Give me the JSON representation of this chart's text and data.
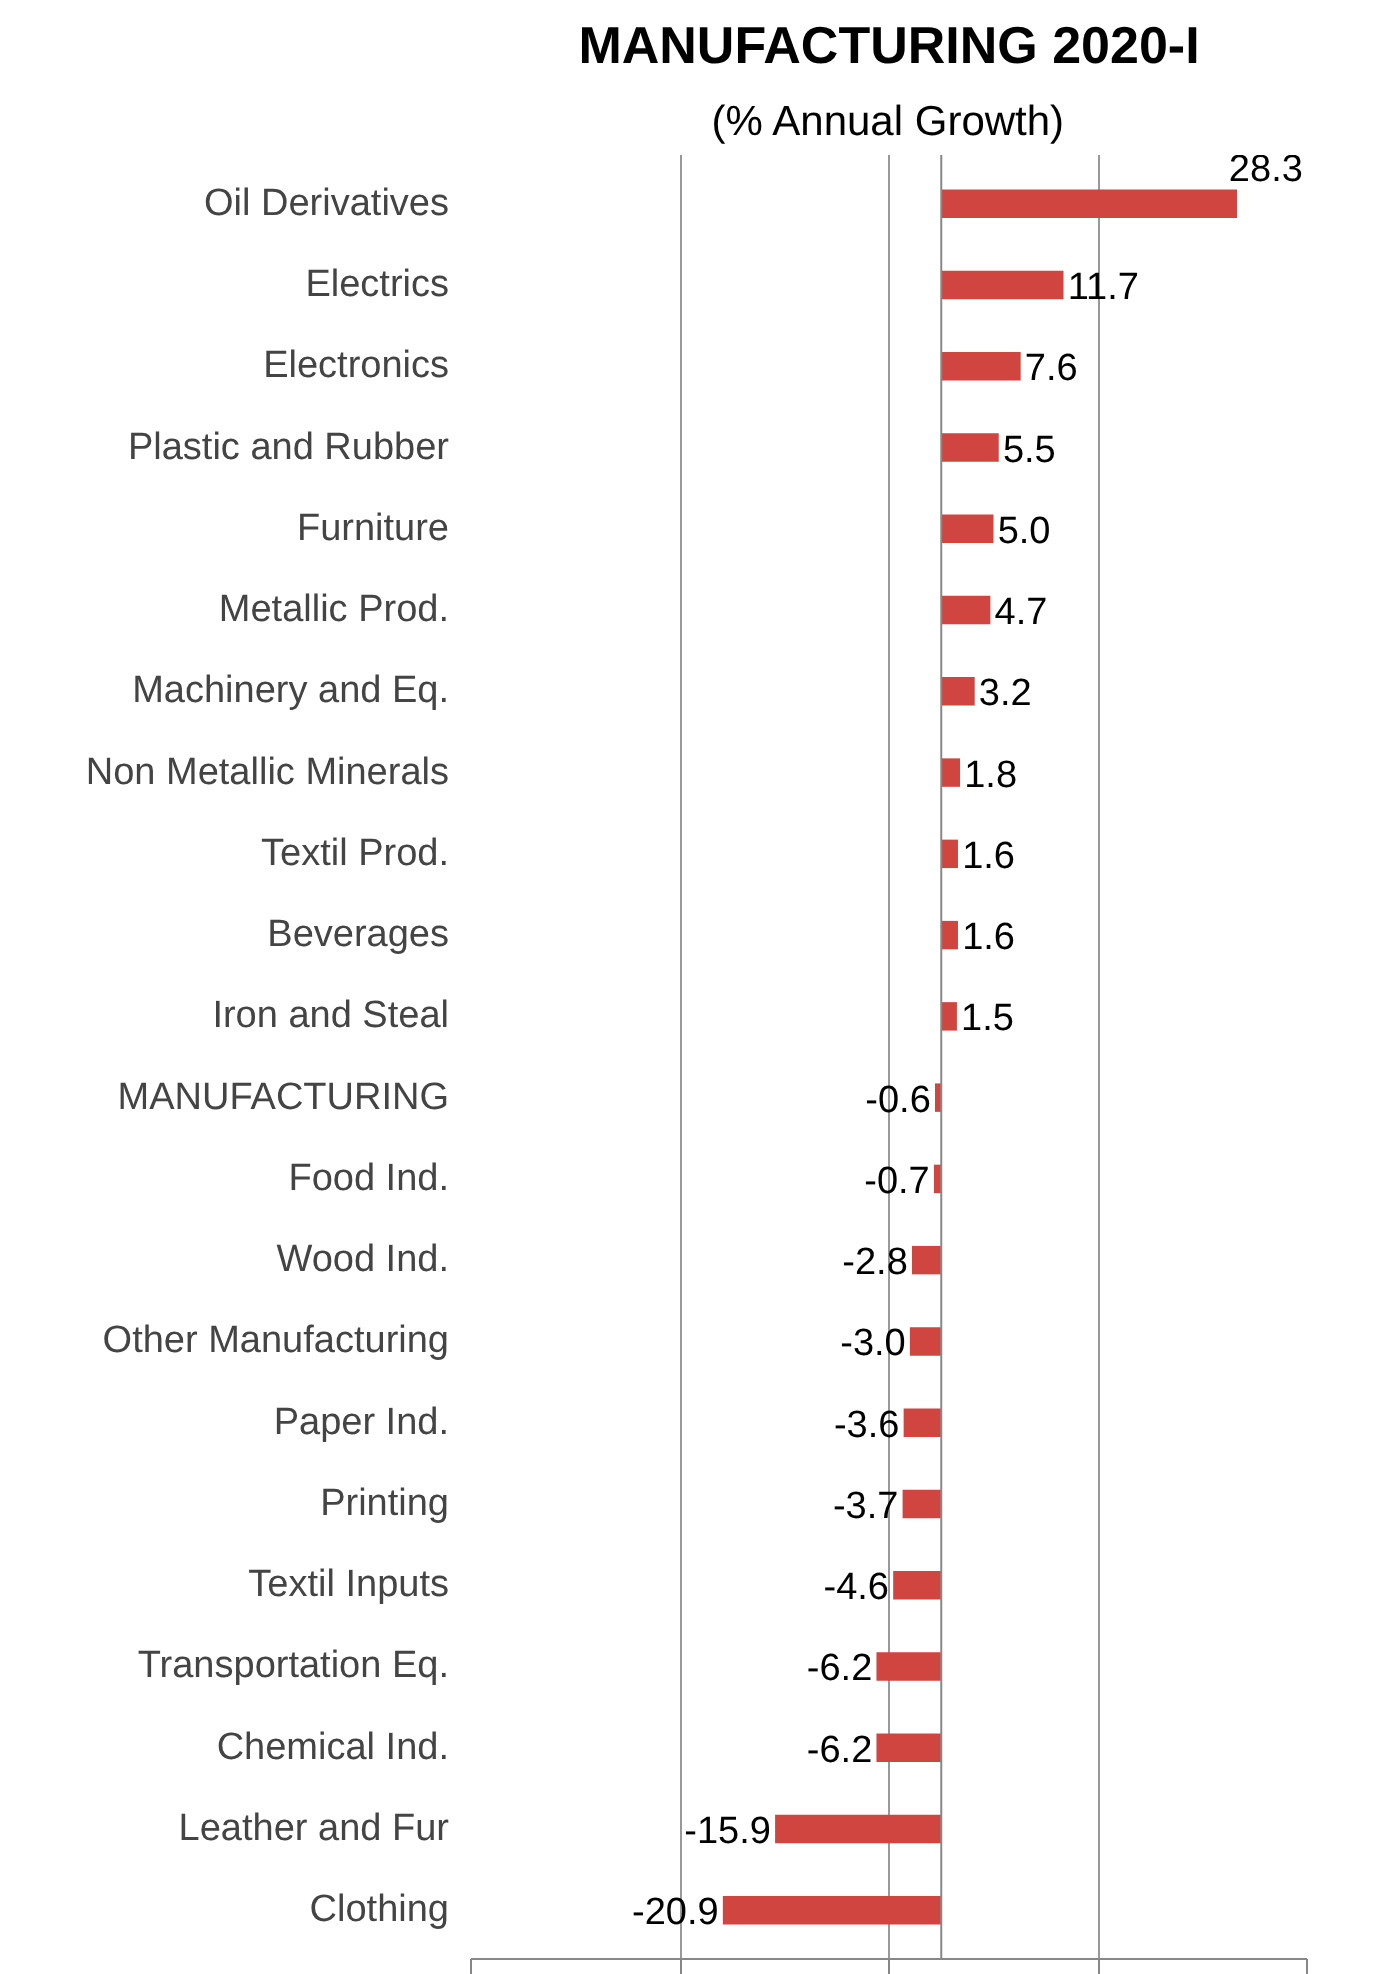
{
  "chart_data": {
    "type": "bar",
    "orientation": "horizontal",
    "title": "MANUFACTURING 2020-I",
    "subtitle": "(% Annual Growth)",
    "categories": [
      "Oil Derivatives",
      "Electrics",
      "Electronics",
      "Plastic and Rubber",
      "Furniture",
      "Metallic Prod.",
      "Machinery and Eq.",
      "Non Metallic Minerals",
      "Textil Prod.",
      "Beverages",
      "Iron and Steal",
      "MANUFACTURING",
      "Food Ind.",
      "Wood Ind.",
      "Other Manufacturing",
      "Paper Ind.",
      "Printing",
      "Textil Inputs",
      "Transportation Eq.",
      "Chemical Ind.",
      "Leather and Fur",
      "Clothing"
    ],
    "values": [
      28.3,
      11.7,
      7.6,
      5.5,
      5.0,
      4.7,
      3.2,
      1.8,
      1.6,
      1.6,
      1.5,
      -0.6,
      -0.7,
      -2.8,
      -3.0,
      -3.6,
      -3.7,
      -4.6,
      -6.2,
      -6.2,
      -15.9,
      -20.9
    ],
    "value_labels": [
      "28.3",
      "11.7",
      "7.6",
      "5.5",
      "5.0",
      "4.7",
      "3.2",
      "1.8",
      "1.6",
      "1.6",
      "1.5",
      "-0.6",
      "-0.7",
      "-2.8",
      "-3.0",
      "-3.6",
      "-3.7",
      "-4.6",
      "-6.2",
      "-6.2",
      "-15.9",
      "-20.9"
    ],
    "color": "#d0453f",
    "xlim": [
      -45,
      35
    ],
    "xticks": [
      {
        "value": -45,
        "label": null
      },
      {
        "value": -25,
        "label": null
      },
      {
        "value": -5,
        "label": null
      },
      {
        "value": 15,
        "label": null
      },
      {
        "value": 35,
        "label": null
      }
    ],
    "grid": "x",
    "tick_labels": "y"
  }
}
